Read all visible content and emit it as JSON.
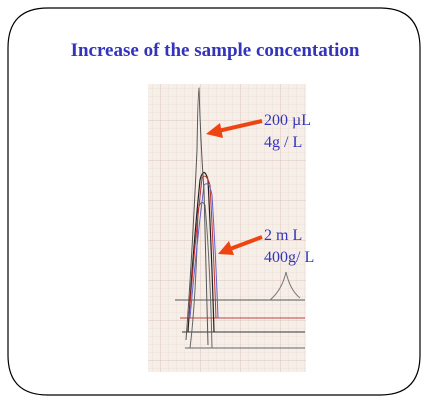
{
  "slide": {
    "title": "Increase of the sample concentation",
    "annotations": [
      {
        "lines": [
          "200 µL",
          "4g / L"
        ]
      },
      {
        "lines": [
          "2 m L",
          "400g/ L"
        ]
      }
    ]
  }
}
